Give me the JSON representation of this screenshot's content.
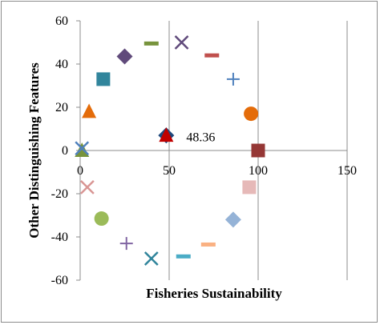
{
  "chart_data": {
    "type": "scatter",
    "title": "",
    "xlabel": "Fisheries Sustainability",
    "ylabel": "Other Distinguishing Features",
    "xlim": [
      0,
      150
    ],
    "ylim": [
      -60,
      60
    ],
    "x_ticks": [
      0,
      50,
      100,
      150
    ],
    "y_ticks": [
      -60,
      -40,
      -20,
      0,
      20,
      40,
      60
    ],
    "x_tick_labels": [
      "0",
      "50",
      "100",
      "150"
    ],
    "y_tick_labels": [
      "-60",
      "-40",
      "-20",
      "0",
      "20",
      "40",
      "60"
    ],
    "grid": "vertical gridlines",
    "legend": "none",
    "annotations": [
      {
        "text": "48.36",
        "x": 48.36,
        "y": 6.5
      }
    ],
    "points": [
      {
        "x": 1,
        "y": 0,
        "marker": "triangle",
        "color": "#77933c"
      },
      {
        "x": 1,
        "y": 1,
        "marker": "x",
        "color": "#4f81bd"
      },
      {
        "x": 5,
        "y": 18,
        "marker": "triangle",
        "color": "#e46c0a"
      },
      {
        "x": 13,
        "y": 33,
        "marker": "square",
        "color": "#31859c"
      },
      {
        "x": 25,
        "y": 43.5,
        "marker": "diamond",
        "color": "#604a7b"
      },
      {
        "x": 40,
        "y": 49.5,
        "marker": "dash",
        "color": "#77933c"
      },
      {
        "x": 57,
        "y": 50,
        "marker": "x",
        "color": "#604a7b"
      },
      {
        "x": 74,
        "y": 44,
        "marker": "dash",
        "color": "#c0504d"
      },
      {
        "x": 86,
        "y": 33,
        "marker": "plus",
        "color": "#4f81bd"
      },
      {
        "x": 96,
        "y": 17,
        "marker": "circle",
        "color": "#e46c0a"
      },
      {
        "x": 100,
        "y": 0,
        "marker": "square",
        "color": "#953735"
      },
      {
        "x": 95,
        "y": -17,
        "marker": "square",
        "color": "#e6b9b8"
      },
      {
        "x": 86,
        "y": -32,
        "marker": "diamond",
        "color": "#95b3d7"
      },
      {
        "x": 72,
        "y": -43.5,
        "marker": "dash",
        "color": "#fab182"
      },
      {
        "x": 58,
        "y": -49,
        "marker": "dash",
        "color": "#4bacc6"
      },
      {
        "x": 40,
        "y": -50,
        "marker": "x",
        "color": "#31859c"
      },
      {
        "x": 26,
        "y": -43,
        "marker": "plus",
        "color": "#8064a2"
      },
      {
        "x": 12,
        "y": -31.5,
        "marker": "circle",
        "color": "#9bbb59"
      },
      {
        "x": 4,
        "y": -17,
        "marker": "x",
        "color": "#d99694"
      },
      {
        "x": 48.36,
        "y": 7,
        "marker": "diamond",
        "color": "#1f497d"
      },
      {
        "x": 48.36,
        "y": 7,
        "marker": "triangle",
        "color": "#c00000"
      }
    ]
  }
}
